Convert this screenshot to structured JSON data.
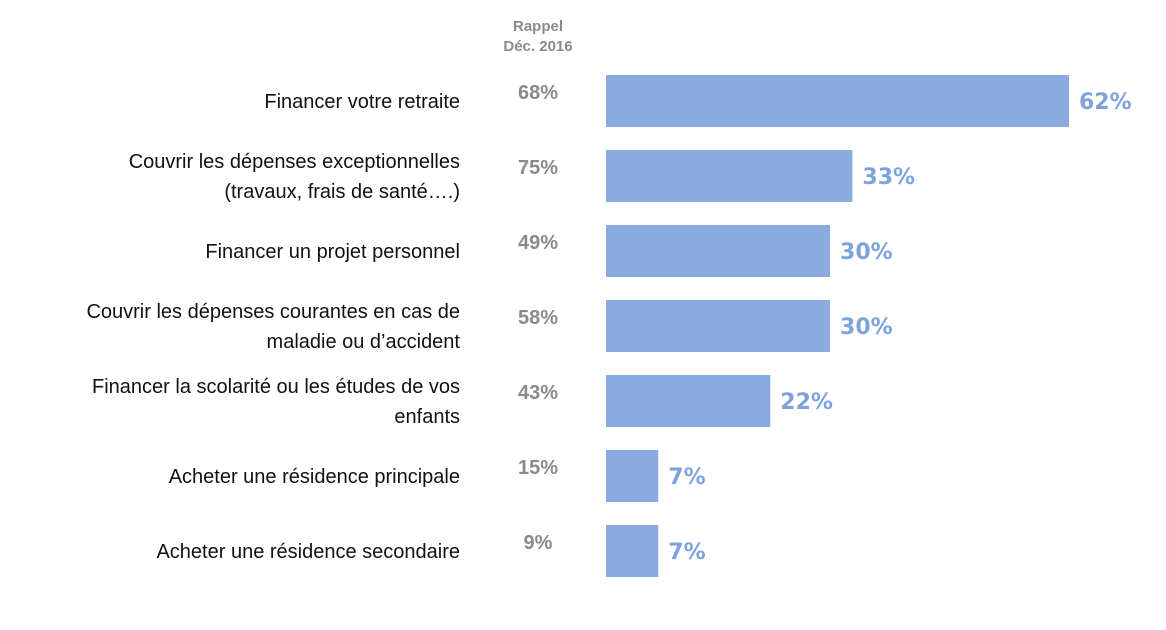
{
  "chart_data": {
    "type": "bar",
    "orientation": "horizontal",
    "recall_header": [
      "Rappel",
      "Déc. 2016"
    ],
    "categories": [
      [
        "Financer votre retraite"
      ],
      [
        "Couvrir les dépenses exceptionnelles",
        "(travaux, frais de santé….)"
      ],
      [
        "Financer un projet personnel"
      ],
      [
        "Couvrir les dépenses courantes en cas de",
        "maladie ou d’accident"
      ],
      [
        "Financer la scolarité ou les études de vos",
        "enfants"
      ],
      [
        "Acheter une résidence principale"
      ],
      [
        "Acheter une résidence secondaire"
      ]
    ],
    "recall_labels": [
      "68%",
      "75%",
      "49%",
      "58%",
      "43%",
      "15%",
      "9%"
    ],
    "values": [
      62,
      33,
      30,
      30,
      22,
      7,
      7
    ],
    "value_labels": [
      "62%",
      "33%",
      "30%",
      "30%",
      "22%",
      "7%",
      "7%"
    ],
    "xlim": [
      0,
      62
    ],
    "bar_color": "#8aabe0",
    "value_label_color": "#7ea3dc",
    "recall_color": "#8a8a8a"
  }
}
